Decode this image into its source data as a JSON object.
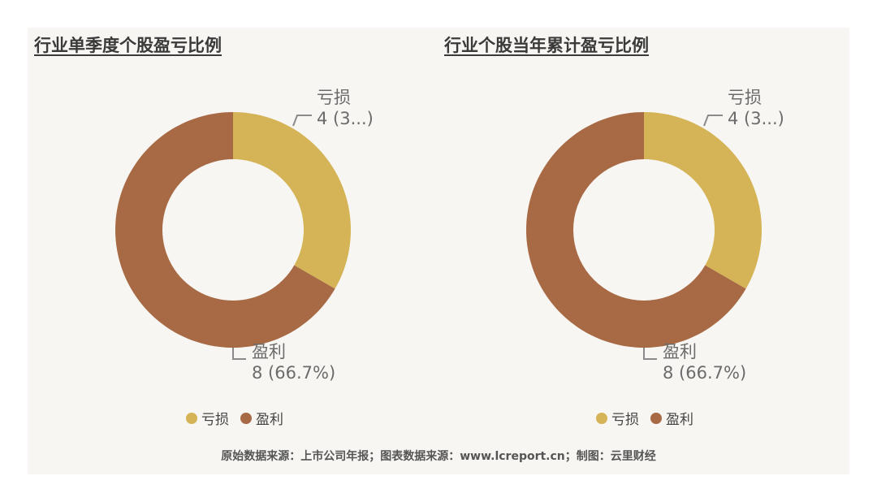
{
  "colors": {
    "loss": "#d4b456",
    "profit": "#a86a45",
    "leader": "#8a8a8a"
  },
  "chart_data": [
    {
      "type": "pie",
      "title": "行业单季度个股盈亏比例",
      "categories": [
        "亏损",
        "盈利"
      ],
      "values": [
        4,
        8
      ],
      "data_labels": [
        {
          "name": "亏损",
          "value_text": "4 (3...)"
        },
        {
          "name": "盈利",
          "value_text": "8 (66.7%)"
        }
      ],
      "legend": [
        "亏损",
        "盈利"
      ],
      "legend_position": "bottom"
    },
    {
      "type": "pie",
      "title": "行业个股当年累计盈亏比例",
      "categories": [
        "亏损",
        "盈利"
      ],
      "values": [
        4,
        8
      ],
      "data_labels": [
        {
          "name": "亏损",
          "value_text": "4 (3...)"
        },
        {
          "name": "盈利",
          "value_text": "8 (66.7%)"
        }
      ],
      "legend": [
        "亏损",
        "盈利"
      ],
      "legend_position": "bottom"
    }
  ],
  "footer": "原始数据来源：上市公司年报；图表数据来源：www.lcreport.cn；制图：云里财经"
}
